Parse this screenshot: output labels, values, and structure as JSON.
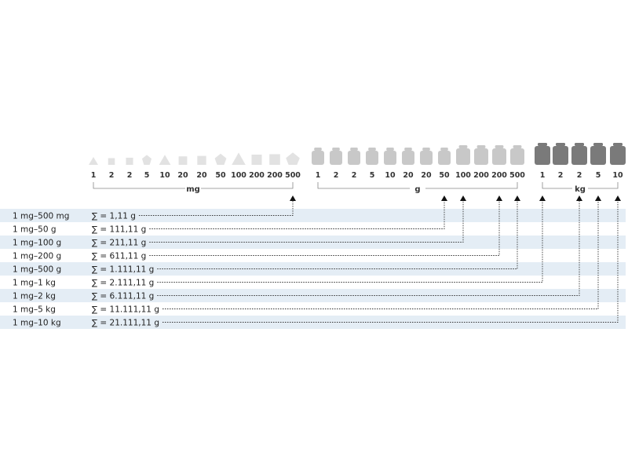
{
  "groups": [
    {
      "unit": "mg",
      "color": "#e2e2e2",
      "weights": [
        {
          "value": "1",
          "shape": "triangle"
        },
        {
          "value": "2",
          "shape": "square"
        },
        {
          "value": "2",
          "shape": "square"
        },
        {
          "value": "5",
          "shape": "pentagon"
        },
        {
          "value": "10",
          "shape": "triangle"
        },
        {
          "value": "20",
          "shape": "square"
        },
        {
          "value": "20",
          "shape": "square"
        },
        {
          "value": "50",
          "shape": "pentagon"
        },
        {
          "value": "100",
          "shape": "triangle"
        },
        {
          "value": "200",
          "shape": "square"
        },
        {
          "value": "200",
          "shape": "square"
        },
        {
          "value": "500",
          "shape": "pentagon"
        }
      ]
    },
    {
      "unit": "g",
      "color": "#c8c8c8",
      "weights": [
        {
          "value": "1",
          "shape": "cylinder"
        },
        {
          "value": "2",
          "shape": "cylinder"
        },
        {
          "value": "2",
          "shape": "cylinder"
        },
        {
          "value": "5",
          "shape": "cylinder"
        },
        {
          "value": "10",
          "shape": "cylinder"
        },
        {
          "value": "20",
          "shape": "cylinder"
        },
        {
          "value": "20",
          "shape": "cylinder"
        },
        {
          "value": "50",
          "shape": "cylinder"
        },
        {
          "value": "100",
          "shape": "cylinder"
        },
        {
          "value": "200",
          "shape": "cylinder"
        },
        {
          "value": "200",
          "shape": "cylinder"
        },
        {
          "value": "500",
          "shape": "cylinder"
        }
      ]
    },
    {
      "unit": "kg",
      "color": "#7a7a7a",
      "weights": [
        {
          "value": "1",
          "shape": "cylinder"
        },
        {
          "value": "2",
          "shape": "cylinder"
        },
        {
          "value": "2",
          "shape": "cylinder"
        },
        {
          "value": "5",
          "shape": "cylinder"
        },
        {
          "value": "10",
          "shape": "cylinder"
        }
      ]
    }
  ],
  "rows": [
    {
      "range": "1 mg–500 mg",
      "sum": "∑ = 1,11 g",
      "target": "mg.11"
    },
    {
      "range": "1 mg–50 g",
      "sum": "∑ = 111,11 g",
      "target": "g.7"
    },
    {
      "range": "1 mg–100 g",
      "sum": "∑ = 211,11 g",
      "target": "g.8"
    },
    {
      "range": "1 mg–200 g",
      "sum": "∑ = 611,11 g",
      "target": "g.10"
    },
    {
      "range": "1 mg–500 g",
      "sum": "∑ = 1.111,11 g",
      "target": "g.11"
    },
    {
      "range": "1 mg–1 kg",
      "sum": "∑ = 2.111,11 g",
      "target": "kg.0"
    },
    {
      "range": "1 mg–2 kg",
      "sum": "∑ = 6.111,11 g",
      "target": "kg.2"
    },
    {
      "range": "1 mg–5 kg",
      "sum": "∑ = 11.111,11 g",
      "target": "kg.3"
    },
    {
      "range": "1 mg–10 kg",
      "sum": "∑ = 21.111,11 g",
      "target": "kg.4"
    }
  ],
  "colors": {
    "band": "#e4edf5",
    "line": "#888888",
    "arrow": "#111111"
  }
}
